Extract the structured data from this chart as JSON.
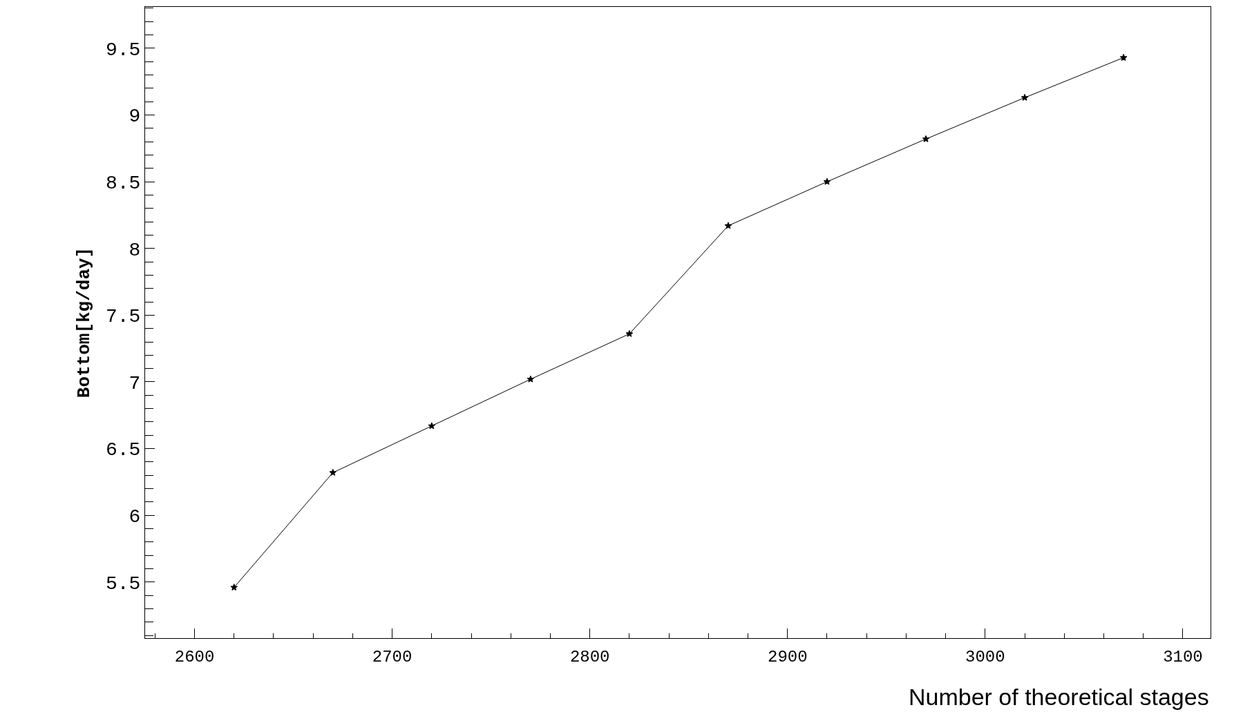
{
  "chart_data": {
    "type": "line",
    "xlabel": "Number of theoretical stages",
    "ylabel": "Bottom[kg/day]",
    "x": [
      2620,
      2670,
      2720,
      2770,
      2820,
      2870,
      2920,
      2970,
      3020,
      3070
    ],
    "series": [
      {
        "color": "#000000",
        "values": [
          5.46,
          6.32,
          6.67,
          7.02,
          7.36,
          8.17,
          8.5,
          8.82,
          9.13,
          9.43
        ]
      }
    ],
    "xlim": [
      2575,
      3114
    ],
    "ylim": [
      5.08,
      9.81
    ],
    "xticks": [
      2600,
      2700,
      2800,
      2900,
      3000,
      3100
    ],
    "yticks": [
      5.5,
      6,
      6.5,
      7,
      7.5,
      8,
      8.5,
      9,
      9.5
    ],
    "marker": "star",
    "line_style": "solid"
  }
}
